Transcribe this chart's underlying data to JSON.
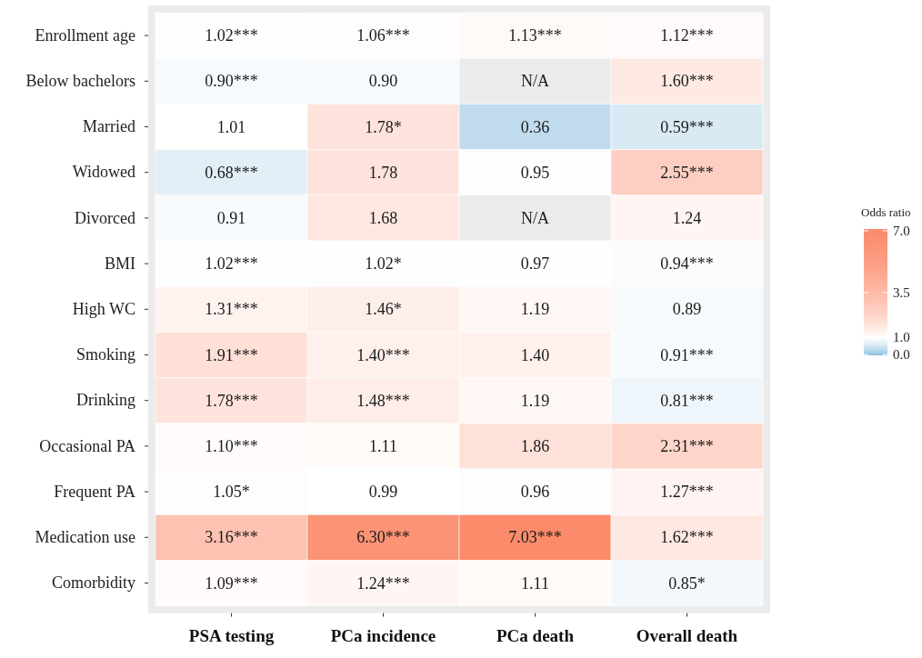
{
  "chart_data": {
    "type": "heatmap",
    "clabel": "Odds ratio",
    "categories": [
      "PSA testing",
      "PCa incidence",
      "PCa death",
      "Overall death"
    ],
    "y_categories": [
      "Enrollment age",
      "Below bachelors",
      "Married",
      "Widowed",
      "Divorced",
      "BMI",
      "High WC",
      "Smoking",
      "Drinking",
      "Occasional PA",
      "Frequent PA",
      "Medication use",
      "Comorbidity"
    ],
    "cells": [
      [
        1.02,
        1.06,
        1.13,
        1.12
      ],
      [
        0.9,
        0.9,
        null,
        1.6
      ],
      [
        1.01,
        1.78,
        0.36,
        0.59
      ],
      [
        0.68,
        1.78,
        0.95,
        2.55
      ],
      [
        0.91,
        1.68,
        null,
        1.24
      ],
      [
        1.02,
        1.02,
        0.97,
        0.94
      ],
      [
        1.31,
        1.46,
        1.19,
        0.89
      ],
      [
        1.91,
        1.4,
        1.4,
        0.91
      ],
      [
        1.78,
        1.48,
        1.19,
        0.81
      ],
      [
        1.1,
        1.11,
        1.86,
        2.31
      ],
      [
        1.05,
        0.99,
        0.96,
        1.27
      ],
      [
        3.16,
        6.3,
        7.03,
        1.62
      ],
      [
        1.09,
        1.24,
        1.11,
        0.85
      ]
    ],
    "cell_labels": [
      [
        "1.02***",
        "1.06***",
        "1.13***",
        "1.12***"
      ],
      [
        "0.90***",
        "0.90",
        "N/A",
        "1.60***"
      ],
      [
        "1.01",
        "1.78*",
        "0.36",
        "0.59***"
      ],
      [
        "0.68***",
        "1.78",
        "0.95",
        "2.55***"
      ],
      [
        "0.91",
        "1.68",
        "N/A",
        "1.24"
      ],
      [
        "1.02***",
        "1.02*",
        "0.97",
        "0.94***"
      ],
      [
        "1.31***",
        "1.46*",
        "1.19",
        "0.89"
      ],
      [
        "1.91***",
        "1.40***",
        "1.40",
        "0.91***"
      ],
      [
        "1.78***",
        "1.48***",
        "1.19",
        "0.81***"
      ],
      [
        "1.10***",
        "1.11",
        "1.86",
        "2.31***"
      ],
      [
        "1.05*",
        "0.99",
        "0.96",
        "1.27***"
      ],
      [
        "3.16***",
        "6.30***",
        "7.03***",
        "1.62***"
      ],
      [
        "1.09***",
        "1.24***",
        "1.11",
        "0.85*"
      ]
    ],
    "clim": [
      0,
      7.1
    ],
    "cticks": [
      {
        "value": 0,
        "label": "0.0"
      },
      {
        "value": 1,
        "label": "1.0"
      },
      {
        "value": 3.5,
        "label": "3.5"
      },
      {
        "value": 7,
        "label": "7.0"
      }
    ]
  }
}
